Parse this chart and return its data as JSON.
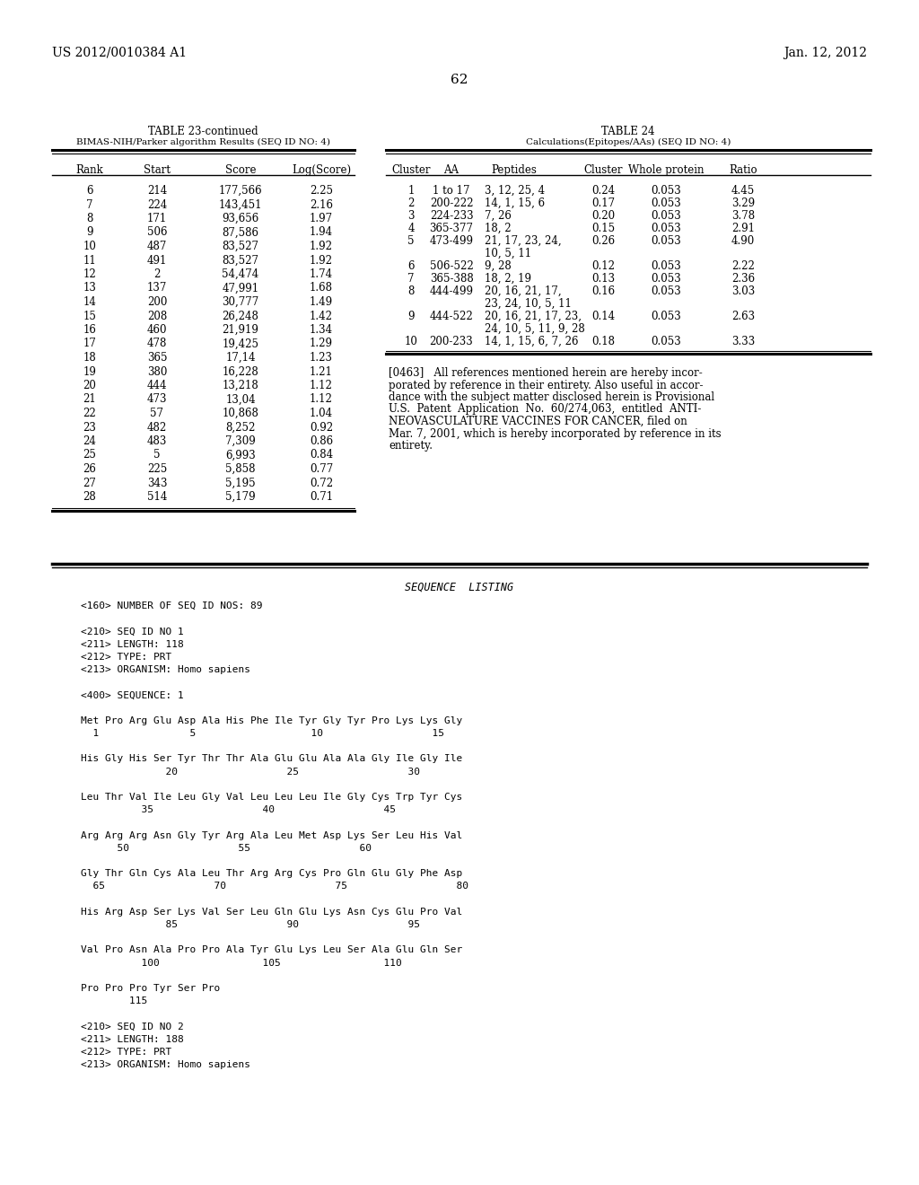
{
  "header_left": "US 2012/0010384 A1",
  "header_right": "Jan. 12, 2012",
  "page_number": "62",
  "table23_title": "TABLE 23-continued",
  "table23_subtitle": "BIMAS-NIH/Parker algorithm Results (SEQ ID NO: 4)",
  "table23_cols": [
    "Rank",
    "Start",
    "Score",
    "Log(Score)"
  ],
  "table23_data": [
    [
      "6",
      "214",
      "177,566",
      "2.25"
    ],
    [
      "7",
      "224",
      "143,451",
      "2.16"
    ],
    [
      "8",
      "171",
      "93,656",
      "1.97"
    ],
    [
      "9",
      "506",
      "87,586",
      "1.94"
    ],
    [
      "10",
      "487",
      "83,527",
      "1.92"
    ],
    [
      "11",
      "491",
      "83,527",
      "1.92"
    ],
    [
      "12",
      "2",
      "54,474",
      "1.74"
    ],
    [
      "13",
      "137",
      "47,991",
      "1.68"
    ],
    [
      "14",
      "200",
      "30,777",
      "1.49"
    ],
    [
      "15",
      "208",
      "26,248",
      "1.42"
    ],
    [
      "16",
      "460",
      "21,919",
      "1.34"
    ],
    [
      "17",
      "478",
      "19,425",
      "1.29"
    ],
    [
      "18",
      "365",
      "17,14",
      "1.23"
    ],
    [
      "19",
      "380",
      "16,228",
      "1.21"
    ],
    [
      "20",
      "444",
      "13,218",
      "1.12"
    ],
    [
      "21",
      "473",
      "13,04",
      "1.12"
    ],
    [
      "22",
      "57",
      "10,868",
      "1.04"
    ],
    [
      "23",
      "482",
      "8,252",
      "0.92"
    ],
    [
      "24",
      "483",
      "7,309",
      "0.86"
    ],
    [
      "25",
      "5",
      "6,993",
      "0.84"
    ],
    [
      "26",
      "225",
      "5,858",
      "0.77"
    ],
    [
      "27",
      "343",
      "5,195",
      "0.72"
    ],
    [
      "28",
      "514",
      "5,179",
      "0.71"
    ]
  ],
  "table24_title": "TABLE 24",
  "table24_subtitle": "Calculations(Epitopes/AAs) (SEQ ID NO: 4)",
  "table24_cols": [
    "Cluster",
    "AA",
    "Peptides",
    "Cluster",
    "Whole protein",
    "Ratio"
  ],
  "table24_data": [
    [
      "1",
      "1 to 17",
      "3, 12, 25, 4",
      "0.24",
      "0.053",
      "4.45",
      1
    ],
    [
      "2",
      "200-222",
      "14, 1, 15, 6",
      "0.17",
      "0.053",
      "3.29",
      1
    ],
    [
      "3",
      "224-233",
      "7, 26",
      "0.20",
      "0.053",
      "3.78",
      1
    ],
    [
      "4",
      "365-377",
      "18, 2",
      "0.15",
      "0.053",
      "2.91",
      1
    ],
    [
      "5",
      "473-499",
      "21, 17, 23, 24,",
      "0.26",
      "0.053",
      "4.90",
      1
    ],
    [
      "",
      "",
      "10, 5, 11",
      "",
      "",
      "",
      0
    ],
    [
      "6",
      "506-522",
      "9, 28",
      "0.12",
      "0.053",
      "2.22",
      1
    ],
    [
      "7",
      "365-388",
      "18, 2, 19",
      "0.13",
      "0.053",
      "2.36",
      1
    ],
    [
      "8",
      "444-499",
      "20, 16, 21, 17,",
      "0.16",
      "0.053",
      "3.03",
      1
    ],
    [
      "",
      "",
      "23, 24, 10, 5, 11",
      "",
      "",
      "",
      0
    ],
    [
      "9",
      "444-522",
      "20, 16, 21, 17, 23,",
      "0.14",
      "0.053",
      "2.63",
      1
    ],
    [
      "",
      "",
      "24, 10, 5, 11, 9, 28",
      "",
      "",
      "",
      0
    ],
    [
      "10",
      "200-233",
      "14, 1, 15, 6, 7, 26",
      "0.18",
      "0.053",
      "3.33",
      1
    ]
  ],
  "paragraph_lines": [
    "[0463]   All references mentioned herein are hereby incor-",
    "porated by reference in their entirety. Also useful in accor-",
    "dance with the subject matter disclosed herein is Provisional",
    "U.S.  Patent  Application  No.  60/274,063,  entitled  ANTI-",
    "NEOVASCULATURE VACCINES FOR CANCER, filed on",
    "Mar. 7, 2001, which is hereby incorporated by reference in its",
    "entirety."
  ],
  "sequence_listing_title": "SEQUENCE  LISTING",
  "sequence_lines": [
    "<160> NUMBER OF SEQ ID NOS: 89",
    "",
    "<210> SEQ ID NO 1",
    "<211> LENGTH: 118",
    "<212> TYPE: PRT",
    "<213> ORGANISM: Homo sapiens",
    "",
    "<400> SEQUENCE: 1",
    "",
    "Met Pro Arg Glu Asp Ala His Phe Ile Tyr Gly Tyr Pro Lys Lys Gly",
    "  1               5                   10                  15",
    "",
    "His Gly His Ser Tyr Thr Thr Ala Glu Glu Ala Ala Gly Ile Gly Ile",
    "              20                  25                  30",
    "",
    "Leu Thr Val Ile Leu Gly Val Leu Leu Leu Ile Gly Cys Trp Tyr Cys",
    "          35                  40                  45",
    "",
    "Arg Arg Arg Asn Gly Tyr Arg Ala Leu Met Asp Lys Ser Leu His Val",
    "      50                  55                  60",
    "",
    "Gly Thr Gln Cys Ala Leu Thr Arg Arg Cys Pro Gln Glu Gly Phe Asp",
    "  65                  70                  75                  80",
    "",
    "His Arg Asp Ser Lys Val Ser Leu Gln Glu Lys Asn Cys Glu Pro Val",
    "              85                  90                  95",
    "",
    "Val Pro Asn Ala Pro Pro Ala Tyr Glu Lys Leu Ser Ala Glu Gln Ser",
    "          100                 105                 110",
    "",
    "Pro Pro Pro Tyr Ser Pro",
    "        115",
    "",
    "<210> SEQ ID NO 2",
    "<211> LENGTH: 188",
    "<212> TYPE: PRT",
    "<213> ORGANISM: Homo sapiens"
  ],
  "bg_color": "#ffffff"
}
